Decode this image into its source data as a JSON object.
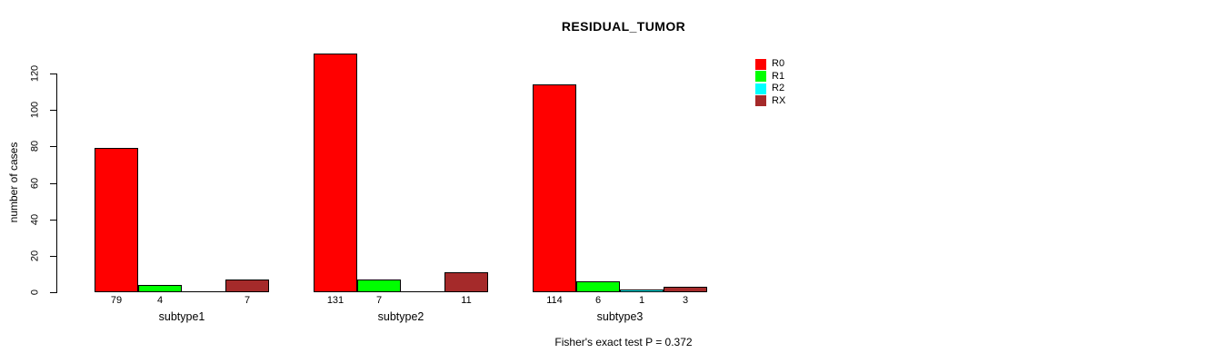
{
  "chart_data": {
    "type": "bar",
    "title": "RESIDUAL_TUMOR",
    "ylabel": "number of cases",
    "xlabel": "",
    "ylim": [
      0,
      120
    ],
    "yticks": [
      0,
      20,
      40,
      60,
      80,
      100,
      120
    ],
    "categories": [
      "subtype1",
      "subtype2",
      "subtype3"
    ],
    "series": [
      {
        "name": "R0",
        "color": "#FF0000",
        "values": [
          79,
          131,
          114
        ]
      },
      {
        "name": "R1",
        "color": "#00FF00",
        "values": [
          4,
          7,
          6
        ]
      },
      {
        "name": "R2",
        "color": "#00FFFF",
        "values": [
          0,
          0,
          1
        ]
      },
      {
        "name": "RX",
        "color": "#A52A2A",
        "values": [
          7,
          11,
          3
        ]
      }
    ],
    "bar_labels": [
      [
        "79",
        "4",
        "",
        "7"
      ],
      [
        "131",
        "7",
        "",
        "11"
      ],
      [
        "114",
        "6",
        "1",
        "3"
      ]
    ],
    "legend_position": "top-right",
    "grid": false,
    "annotation": "Fisher's exact test P = 0.372"
  }
}
